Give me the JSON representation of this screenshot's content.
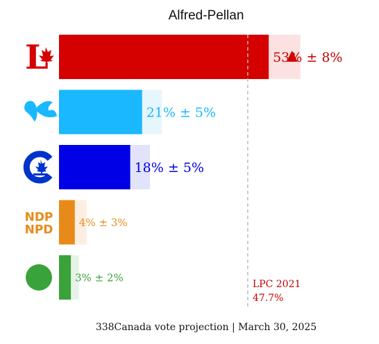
{
  "chart_data": {
    "type": "bar",
    "orientation": "horizontal",
    "title": "Alfred-Pellan",
    "xlim": [
      0,
      61
    ],
    "categories": [
      "LPC",
      "BQ",
      "CPC",
      "NDP",
      "GPC"
    ],
    "series": [
      {
        "values": [
          53,
          21,
          18,
          4,
          3
        ],
        "errors": [
          8,
          5,
          5,
          3,
          2
        ],
        "labels": [
          "53% ± 8%",
          "21% ± 5%",
          "18% ± 5%",
          "4% ± 3%",
          "3% ± 2%"
        ]
      }
    ],
    "colors": [
      "#d50000",
      "#19b8ff",
      "#0000e6",
      "#e88a1a",
      "#3aa23a"
    ],
    "band_colors": [
      "#fbe1e1",
      "#e6f6fd",
      "#e2e2fb",
      "#fcefe1",
      "#e6f3e6"
    ],
    "trend_markers": [
      "up",
      "",
      "",
      "",
      ""
    ],
    "reference": {
      "value": 47.7,
      "label_line1": "LPC 2021",
      "label_line2": "47.7%",
      "color": "#c40000"
    },
    "party_logos": [
      {
        "name": "liberal-logo",
        "glyph": "L",
        "color": "#d50000"
      },
      {
        "name": "bloc-logo",
        "glyph": "",
        "color": "#19b8ff"
      },
      {
        "name": "conservative-logo",
        "glyph": "C",
        "color": "#0033cc"
      },
      {
        "name": "ndp-logo",
        "glyph": "NDP|NPD",
        "color": "#e88a1a"
      },
      {
        "name": "green-logo",
        "glyph": "",
        "color": "#3aa23a"
      }
    ]
  },
  "footer": "338Canada vote projection | March 30, 2025"
}
